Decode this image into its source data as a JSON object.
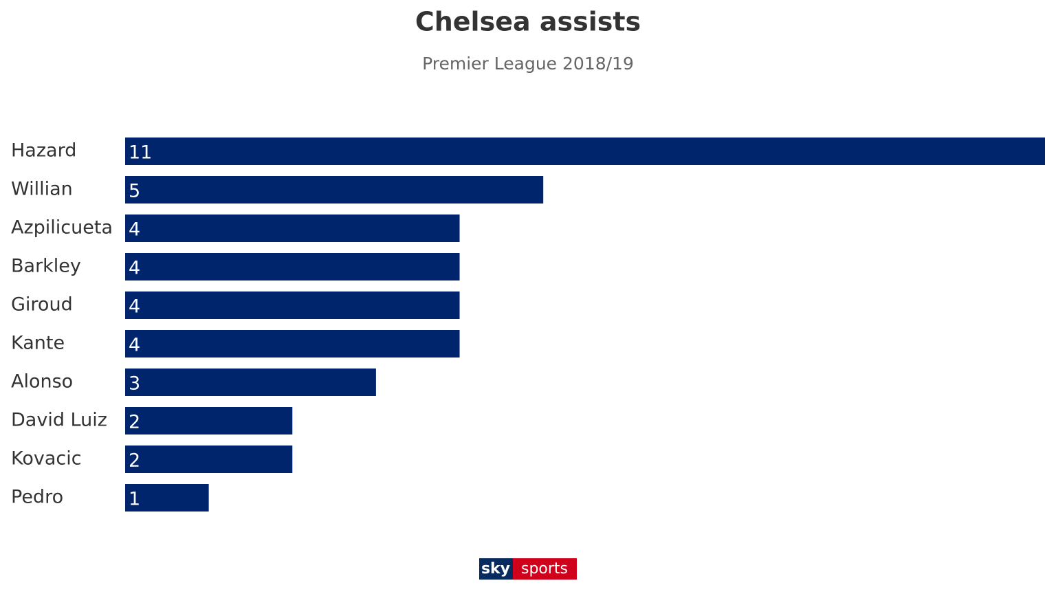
{
  "chart_data": {
    "type": "bar",
    "orientation": "horizontal",
    "title": "Chelsea assists",
    "subtitle": "Premier League 2018/19",
    "categories": [
      "Hazard",
      "Willian",
      "Azpilicueta",
      "Barkley",
      "Giroud",
      "Kante",
      "Alonso",
      "David Luiz",
      "Kovacic",
      "Pedro"
    ],
    "values": [
      11,
      5,
      4,
      4,
      4,
      4,
      3,
      2,
      2,
      1
    ],
    "color": "#00256c"
  },
  "logo": {
    "left": "sky",
    "right": "sports"
  }
}
